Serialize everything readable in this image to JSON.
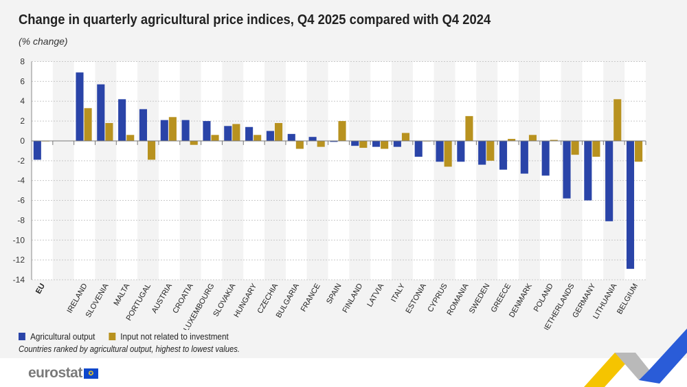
{
  "header": {
    "title": "Change in quarterly agricultural price indices, Q4 2025 compared with Q4 2024",
    "subtitle": "(% change)"
  },
  "chart_data": {
    "type": "bar",
    "title": "Change in quarterly agricultural price indices, Q4 2025 compared with Q4 2024",
    "ylabel": "(% change)",
    "ylim": [
      -14,
      8
    ],
    "yticks": [
      8,
      6,
      4,
      2,
      0,
      -2,
      -4,
      -6,
      -8,
      -10,
      -12,
      -14
    ],
    "grid": true,
    "legend_placement": "bottom-left",
    "categories": [
      "EU",
      "",
      "IRELAND",
      "SLOVENIA",
      "MALTA",
      "PORTUGAL",
      "AUSTRIA",
      "CROATIA",
      "LUXEMBOURG",
      "SLOVAKIA",
      "HUNGARY",
      "CZECHIA",
      "BULGARIA",
      "FRANCE",
      "SPAIN",
      "FINLAND",
      "LATVIA",
      "ITALY",
      "ESTONIA",
      "CYPRUS",
      "ROMANIA",
      "SWEDEN",
      "GREECE",
      "DENMARK",
      "POLAND",
      "NETHERLANDS",
      "GERMANY",
      "LITHUANIA",
      "BELGIUM"
    ],
    "series": [
      {
        "name": "Agricultural output",
        "color": "#2a44a8",
        "values": [
          -1.9,
          null,
          6.9,
          5.7,
          4.2,
          3.2,
          2.1,
          2.1,
          2.0,
          1.5,
          1.4,
          1.0,
          0.7,
          0.4,
          -0.1,
          -0.5,
          -0.6,
          -0.6,
          -1.6,
          -2.1,
          -2.1,
          -2.4,
          -2.9,
          -3.3,
          -3.5,
          -5.8,
          -6.0,
          -8.1,
          -12.9
        ]
      },
      {
        "name": "Input not related to investment",
        "color": "#b8921f",
        "values": [
          0.0,
          null,
          3.3,
          1.8,
          0.6,
          -1.9,
          2.4,
          -0.4,
          0.6,
          1.7,
          0.6,
          1.8,
          -0.8,
          -0.6,
          2.0,
          -0.7,
          -0.8,
          0.8,
          0.0,
          -2.6,
          2.5,
          -2.0,
          0.2,
          0.6,
          0.1,
          -1.4,
          -1.6,
          4.2,
          -2.1
        ]
      }
    ]
  },
  "note": "Countries ranked by agricultural output, highest to lowest values.",
  "logo": {
    "text": "eurostat"
  }
}
